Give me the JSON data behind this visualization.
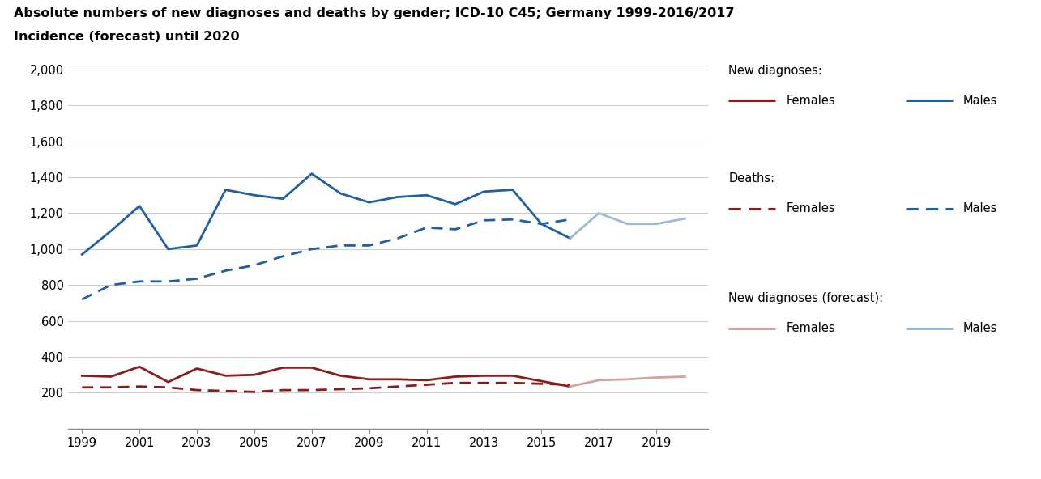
{
  "title_line1": "Absolute numbers of new diagnoses and deaths by gender; ICD-10 C45; Germany 1999-2016/2017",
  "title_line2": "Incidence (forecast) until 2020",
  "years_actual": [
    1999,
    2000,
    2001,
    2002,
    2003,
    2004,
    2005,
    2006,
    2007,
    2008,
    2009,
    2010,
    2011,
    2012,
    2013,
    2014,
    2015,
    2016
  ],
  "years_forecast": [
    2016,
    2017,
    2018,
    2019,
    2020
  ],
  "new_diag_males": [
    970,
    1100,
    1240,
    1000,
    1020,
    1330,
    1300,
    1280,
    1420,
    1310,
    1260,
    1290,
    1300,
    1250,
    1320,
    1330,
    1140,
    1060
  ],
  "new_diag_females": [
    295,
    290,
    345,
    260,
    335,
    295,
    300,
    340,
    340,
    295,
    275,
    275,
    270,
    290,
    295,
    295,
    265,
    235
  ],
  "deaths_males": [
    720,
    800,
    820,
    820,
    835,
    880,
    910,
    960,
    1000,
    1020,
    1020,
    1060,
    1120,
    1110,
    1160,
    1165,
    1140,
    1165
  ],
  "deaths_females": [
    230,
    230,
    235,
    230,
    215,
    210,
    205,
    215,
    215,
    220,
    225,
    235,
    245,
    255,
    255,
    255,
    250,
    245
  ],
  "forecast_males": [
    1060,
    1200,
    1140,
    1140,
    1170
  ],
  "forecast_females": [
    235,
    270,
    275,
    285,
    290
  ],
  "color_male": "#1F5FA6",
  "color_female": "#8B1A1A",
  "color_forecast_male": "#A0B8D8",
  "color_forecast_female": "#D4A0A0",
  "ylim": [
    0,
    2000
  ],
  "yticks": [
    200,
    400,
    600,
    800,
    1000,
    1200,
    1400,
    1600,
    1800,
    2000
  ],
  "xticks": [
    1999,
    2001,
    2003,
    2005,
    2007,
    2009,
    2011,
    2013,
    2015,
    2017,
    2019
  ],
  "background_color": "#ffffff",
  "legend_sections": [
    {
      "label": "New diagnoses:",
      "type": "header"
    },
    {
      "label": "Females",
      "type": "solid",
      "color": "#8B1A1A"
    },
    {
      "label": "Males",
      "type": "solid",
      "color": "#1F5FA6"
    },
    {
      "label": "Deaths:",
      "type": "header"
    },
    {
      "label": "Females",
      "type": "dashed",
      "color": "#8B1A1A"
    },
    {
      "label": "Males",
      "type": "dashed",
      "color": "#1F5FA6"
    },
    {
      "label": "New diagnoses (forecast):",
      "type": "header"
    },
    {
      "label": "Females",
      "type": "solid",
      "color": "#D4A0A0"
    },
    {
      "label": "Males",
      "type": "solid",
      "color": "#A0B8D8"
    }
  ]
}
